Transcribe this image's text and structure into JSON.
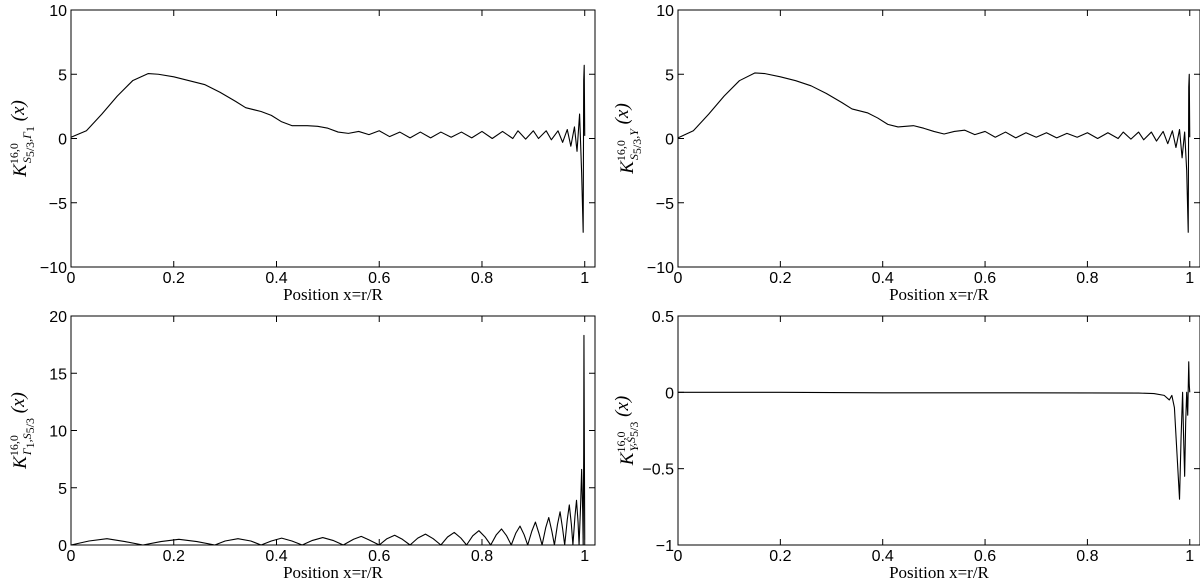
{
  "chart_data": [
    {
      "id": "top-left",
      "type": "line",
      "xlabel": "Position x=r/R",
      "ylabel": {
        "main": "K",
        "sup": "16,0",
        "sub1": "S",
        "sub1sub": "5/3",
        "sub2": ",Γ",
        "sub2sub": "1",
        "tail": "(x)"
      },
      "xlim": [
        0,
        1.02
      ],
      "ylim": [
        -10,
        10
      ],
      "xticks": [
        0,
        0.2,
        0.4,
        0.6,
        0.8,
        1
      ],
      "xtick_labels": [
        "0",
        "0.2",
        "0.4",
        "0.6",
        "0.8",
        "1"
      ],
      "yticks": [
        -10,
        -5,
        0,
        5,
        10
      ],
      "ytick_labels": [
        "−10",
        "−5",
        "0",
        "5",
        "10"
      ],
      "series": [
        {
          "points": [
            [
              0,
              0.1
            ],
            [
              0.03,
              0.6
            ],
            [
              0.06,
              1.9
            ],
            [
              0.09,
              3.3
            ],
            [
              0.12,
              4.5
            ],
            [
              0.15,
              5.05
            ],
            [
              0.17,
              5.0
            ],
            [
              0.2,
              4.8
            ],
            [
              0.23,
              4.5
            ],
            [
              0.26,
              4.2
            ],
            [
              0.29,
              3.6
            ],
            [
              0.32,
              2.9
            ],
            [
              0.34,
              2.4
            ],
            [
              0.37,
              2.1
            ],
            [
              0.39,
              1.8
            ],
            [
              0.41,
              1.3
            ],
            [
              0.43,
              1.0
            ],
            [
              0.46,
              1.0
            ],
            [
              0.48,
              0.95
            ],
            [
              0.5,
              0.8
            ],
            [
              0.52,
              0.5
            ],
            [
              0.54,
              0.4
            ],
            [
              0.56,
              0.55
            ],
            [
              0.58,
              0.3
            ],
            [
              0.6,
              0.6
            ],
            [
              0.62,
              0.15
            ],
            [
              0.64,
              0.5
            ],
            [
              0.66,
              0.05
            ],
            [
              0.68,
              0.5
            ],
            [
              0.7,
              0.05
            ],
            [
              0.72,
              0.5
            ],
            [
              0.74,
              0.1
            ],
            [
              0.76,
              0.5
            ],
            [
              0.78,
              0.05
            ],
            [
              0.8,
              0.55
            ],
            [
              0.82,
              0.0
            ],
            [
              0.84,
              0.55
            ],
            [
              0.86,
              0.0
            ],
            [
              0.87,
              0.6
            ],
            [
              0.885,
              -0.05
            ],
            [
              0.9,
              0.6
            ],
            [
              0.91,
              0.0
            ],
            [
              0.925,
              0.6
            ],
            [
              0.935,
              -0.1
            ],
            [
              0.948,
              0.6
            ],
            [
              0.957,
              -0.3
            ],
            [
              0.966,
              0.7
            ],
            [
              0.973,
              -0.6
            ],
            [
              0.98,
              0.9
            ],
            [
              0.985,
              -1.0
            ],
            [
              0.99,
              1.9
            ],
            [
              0.994,
              -2.7
            ],
            [
              0.997,
              -7.3
            ],
            [
              0.998,
              4.5
            ],
            [
              0.999,
              5.7
            ],
            [
              1.0,
              0.2
            ]
          ]
        }
      ]
    },
    {
      "id": "top-right",
      "type": "line",
      "xlabel": "Position x=r/R",
      "ylabel": {
        "main": "K",
        "sup": "16,0",
        "sub1": "S",
        "sub1sub": "5/3",
        "sub2": ",Y",
        "sub2sub": "",
        "tail": "(x)"
      },
      "xlim": [
        0,
        1.02
      ],
      "ylim": [
        -10,
        10
      ],
      "xticks": [
        0,
        0.2,
        0.4,
        0.6,
        0.8,
        1
      ],
      "xtick_labels": [
        "0",
        "0.2",
        "0.4",
        "0.6",
        "0.8",
        "1"
      ],
      "yticks": [
        -10,
        -5,
        0,
        5,
        10
      ],
      "ytick_labels": [
        "−10",
        "−5",
        "0",
        "5",
        "10"
      ],
      "series": [
        {
          "points": [
            [
              0,
              0.05
            ],
            [
              0.03,
              0.6
            ],
            [
              0.06,
              1.9
            ],
            [
              0.09,
              3.3
            ],
            [
              0.12,
              4.5
            ],
            [
              0.15,
              5.1
            ],
            [
              0.17,
              5.05
            ],
            [
              0.2,
              4.8
            ],
            [
              0.23,
              4.5
            ],
            [
              0.26,
              4.1
            ],
            [
              0.29,
              3.5
            ],
            [
              0.32,
              2.8
            ],
            [
              0.34,
              2.3
            ],
            [
              0.37,
              2.0
            ],
            [
              0.39,
              1.6
            ],
            [
              0.41,
              1.1
            ],
            [
              0.43,
              0.9
            ],
            [
              0.46,
              1.0
            ],
            [
              0.48,
              0.8
            ],
            [
              0.5,
              0.55
            ],
            [
              0.52,
              0.35
            ],
            [
              0.54,
              0.55
            ],
            [
              0.56,
              0.65
            ],
            [
              0.58,
              0.3
            ],
            [
              0.6,
              0.55
            ],
            [
              0.62,
              0.1
            ],
            [
              0.64,
              0.5
            ],
            [
              0.66,
              0.05
            ],
            [
              0.68,
              0.45
            ],
            [
              0.7,
              0.1
            ],
            [
              0.72,
              0.45
            ],
            [
              0.74,
              0.05
            ],
            [
              0.76,
              0.4
            ],
            [
              0.78,
              0.1
            ],
            [
              0.8,
              0.45
            ],
            [
              0.82,
              0.0
            ],
            [
              0.84,
              0.45
            ],
            [
              0.86,
              0.0
            ],
            [
              0.87,
              0.5
            ],
            [
              0.885,
              -0.05
            ],
            [
              0.9,
              0.5
            ],
            [
              0.91,
              -0.1
            ],
            [
              0.925,
              0.5
            ],
            [
              0.935,
              -0.2
            ],
            [
              0.948,
              0.55
            ],
            [
              0.957,
              -0.4
            ],
            [
              0.966,
              0.6
            ],
            [
              0.973,
              -0.7
            ],
            [
              0.98,
              0.7
            ],
            [
              0.985,
              -1.5
            ],
            [
              0.99,
              0.5
            ],
            [
              0.994,
              -2.5
            ],
            [
              0.997,
              -7.3
            ],
            [
              0.998,
              4.0
            ],
            [
              0.999,
              5.0
            ],
            [
              1.0,
              0.1
            ]
          ]
        }
      ]
    },
    {
      "id": "bottom-left",
      "type": "line",
      "xlabel": "Position x=r/R",
      "ylabel": {
        "main": "K",
        "sup": "16,0",
        "sub1": "Γ",
        "sub1sub": "1",
        "sub2": ",S",
        "sub2sub": "5/3",
        "tail": "(x)"
      },
      "xlim": [
        0,
        1.02
      ],
      "ylim": [
        0,
        20
      ],
      "xticks": [
        0,
        0.2,
        0.4,
        0.6,
        0.8,
        1
      ],
      "xtick_labels": [
        "0",
        "0.2",
        "0.4",
        "0.6",
        "0.8",
        "1"
      ],
      "yticks": [
        0,
        5,
        10,
        15,
        20
      ],
      "ytick_labels": [
        "0",
        "5",
        "10",
        "15",
        "20"
      ],
      "series": [
        {
          "points": [
            [
              0,
              0.0
            ],
            [
              0.035,
              0.35
            ],
            [
              0.07,
              0.55
            ],
            [
              0.105,
              0.3
            ],
            [
              0.14,
              0.0
            ],
            [
              0.175,
              0.3
            ],
            [
              0.21,
              0.5
            ],
            [
              0.245,
              0.3
            ],
            [
              0.28,
              0.0
            ],
            [
              0.3,
              0.35
            ],
            [
              0.325,
              0.55
            ],
            [
              0.35,
              0.35
            ],
            [
              0.37,
              0.0
            ],
            [
              0.39,
              0.35
            ],
            [
              0.41,
              0.6
            ],
            [
              0.43,
              0.35
            ],
            [
              0.45,
              0.0
            ],
            [
              0.47,
              0.4
            ],
            [
              0.49,
              0.65
            ],
            [
              0.51,
              0.4
            ],
            [
              0.53,
              0.0
            ],
            [
              0.55,
              0.5
            ],
            [
              0.565,
              0.75
            ],
            [
              0.58,
              0.45
            ],
            [
              0.6,
              0.0
            ],
            [
              0.615,
              0.55
            ],
            [
              0.63,
              0.85
            ],
            [
              0.645,
              0.5
            ],
            [
              0.66,
              0.0
            ],
            [
              0.675,
              0.6
            ],
            [
              0.69,
              0.95
            ],
            [
              0.705,
              0.55
            ],
            [
              0.72,
              0.0
            ],
            [
              0.733,
              0.7
            ],
            [
              0.746,
              1.1
            ],
            [
              0.759,
              0.6
            ],
            [
              0.77,
              0.0
            ],
            [
              0.782,
              0.8
            ],
            [
              0.794,
              1.25
            ],
            [
              0.806,
              0.7
            ],
            [
              0.817,
              0.0
            ],
            [
              0.828,
              0.9
            ],
            [
              0.838,
              1.4
            ],
            [
              0.848,
              0.8
            ],
            [
              0.857,
              0.0
            ],
            [
              0.866,
              1.05
            ],
            [
              0.874,
              1.65
            ],
            [
              0.882,
              0.9
            ],
            [
              0.889,
              0.0
            ],
            [
              0.897,
              1.2
            ],
            [
              0.904,
              2.0
            ],
            [
              0.911,
              1.0
            ],
            [
              0.917,
              0.0
            ],
            [
              0.924,
              1.5
            ],
            [
              0.93,
              2.4
            ],
            [
              0.936,
              1.2
            ],
            [
              0.941,
              0.0
            ],
            [
              0.947,
              1.8
            ],
            [
              0.952,
              2.9
            ],
            [
              0.957,
              1.4
            ],
            [
              0.961,
              0.0
            ],
            [
              0.966,
              2.2
            ],
            [
              0.97,
              3.5
            ],
            [
              0.974,
              1.8
            ],
            [
              0.977,
              0.0
            ],
            [
              0.981,
              2.5
            ],
            [
              0.984,
              3.9
            ],
            [
              0.987,
              2.0
            ],
            [
              0.989,
              0.0
            ],
            [
              0.992,
              3.5
            ],
            [
              0.994,
              6.6
            ],
            [
              0.996,
              3.0
            ],
            [
              0.997,
              0.0
            ],
            [
              0.998,
              8.0
            ],
            [
              0.9985,
              18.3
            ],
            [
              0.999,
              12.0
            ],
            [
              1.0,
              0.5
            ]
          ]
        }
      ]
    },
    {
      "id": "bottom-right",
      "type": "line",
      "xlabel": "Position x=r/R",
      "ylabel": {
        "main": "K",
        "sup": "16,0",
        "sub1": "Y",
        "sub1sub": "",
        "sub2": ",S",
        "sub2sub": "5/3",
        "tail": "(x)"
      },
      "xlim": [
        0,
        1.02
      ],
      "ylim": [
        -1,
        0.5
      ],
      "xticks": [
        0,
        0.2,
        0.4,
        0.6,
        0.8,
        1
      ],
      "xtick_labels": [
        "0",
        "0.2",
        "0.4",
        "0.6",
        "0.8",
        "1"
      ],
      "yticks": [
        -1,
        -0.5,
        0,
        0.5
      ],
      "ytick_labels": [
        "−1",
        "−0.5",
        "0",
        "0.5"
      ],
      "series": [
        {
          "points": [
            [
              0,
              0.0
            ],
            [
              0.2,
              0.0
            ],
            [
              0.4,
              -0.003
            ],
            [
              0.6,
              -0.003
            ],
            [
              0.8,
              -0.004
            ],
            [
              0.9,
              -0.005
            ],
            [
              0.93,
              -0.008
            ],
            [
              0.95,
              -0.02
            ],
            [
              0.96,
              -0.05
            ],
            [
              0.965,
              -0.02
            ],
            [
              0.97,
              -0.1
            ],
            [
              0.975,
              -0.4
            ],
            [
              0.98,
              -0.7
            ],
            [
              0.983,
              -0.3
            ],
            [
              0.986,
              0.0
            ],
            [
              0.988,
              -0.3
            ],
            [
              0.99,
              -0.55
            ],
            [
              0.992,
              -0.2
            ],
            [
              0.994,
              0.0
            ],
            [
              0.996,
              -0.15
            ],
            [
              0.998,
              0.2
            ],
            [
              0.999,
              0.05
            ],
            [
              1.0,
              0.0
            ]
          ]
        }
      ]
    }
  ]
}
